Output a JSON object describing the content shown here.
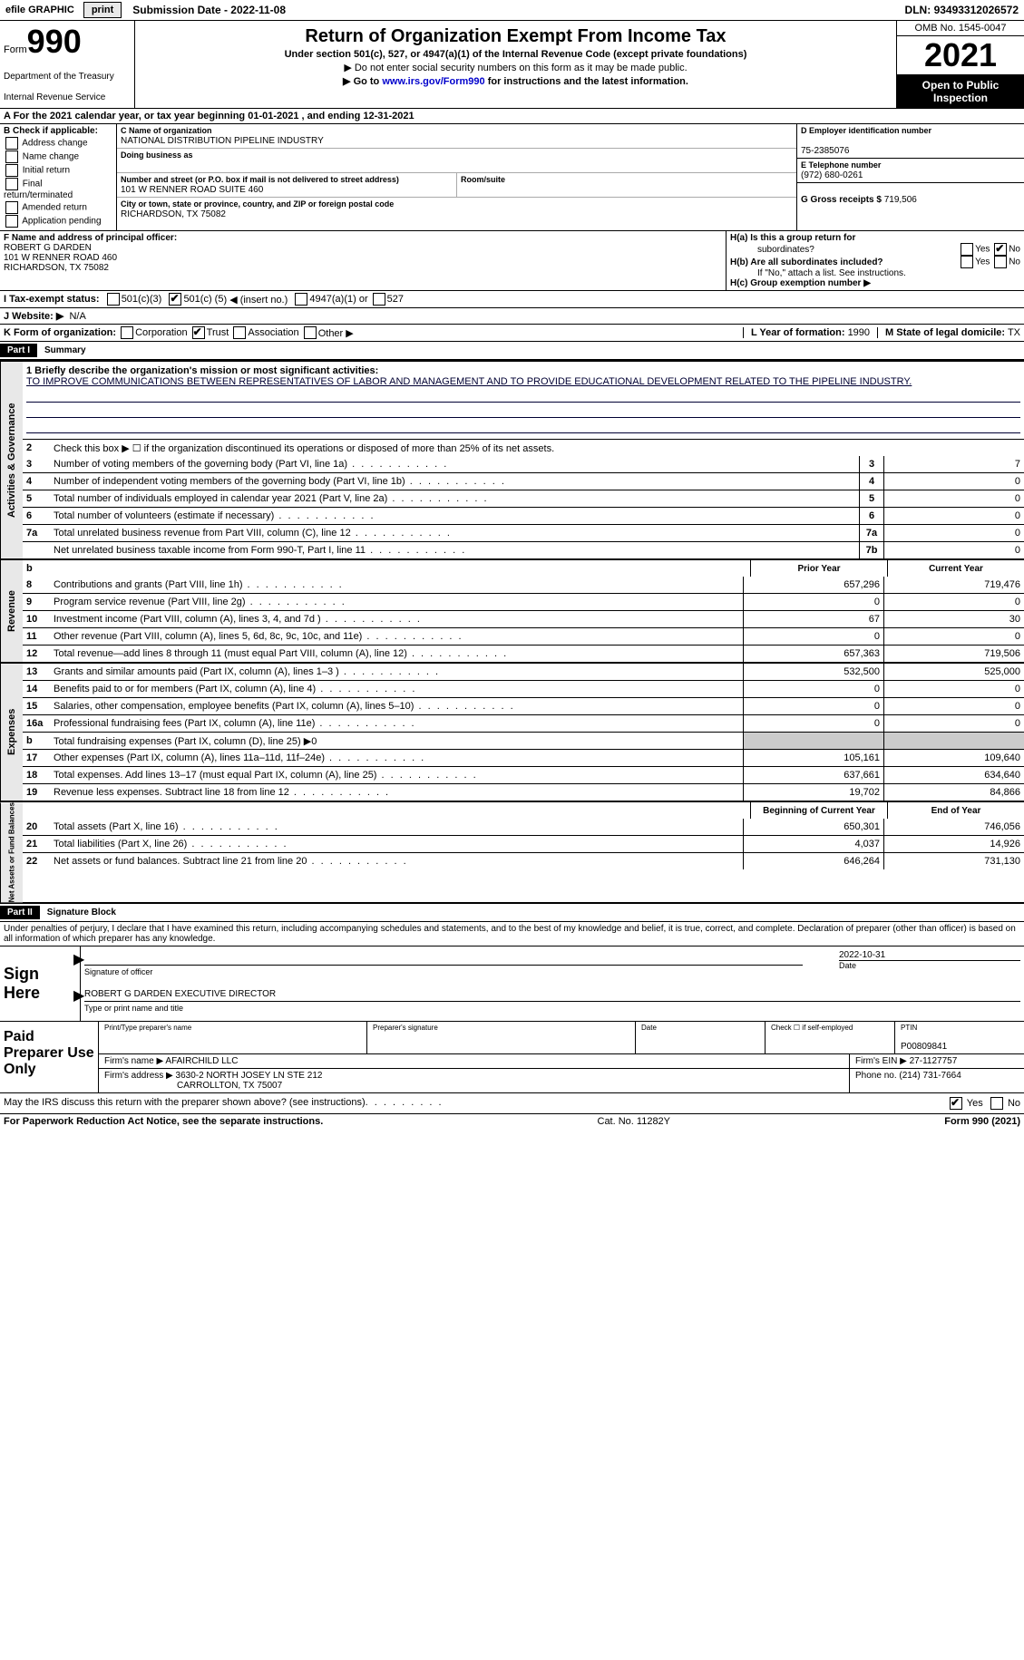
{
  "topbar": {
    "efile_prefix": "efile",
    "graphic": "GRAPHIC",
    "print": "print",
    "sub_date_label": "Submission Date -",
    "sub_date": "2022-11-08",
    "dln_label": "DLN:",
    "dln": "93493312026572"
  },
  "header": {
    "form_label": "Form",
    "form_num": "990",
    "dept": "Department of the Treasury",
    "irs": "Internal Revenue Service",
    "title": "Return of Organization Exempt From Income Tax",
    "sub1": "Under section 501(c), 527, or 4947(a)(1) of the Internal Revenue Code (except private foundations)",
    "sub2": "▶ Do not enter social security numbers on this form as it may be made public.",
    "sub3_pre": "▶ Go to ",
    "sub3_link": "www.irs.gov/Form990",
    "sub3_post": " for instructions and the latest information.",
    "omb": "OMB No. 1545-0047",
    "year": "2021",
    "open1": "Open to Public",
    "open2": "Inspection"
  },
  "row_a": {
    "text_pre": "A For the 2021 calendar year, or tax year beginning ",
    "begin": "01-01-2021",
    "mid": " , and ending ",
    "end": "12-31-2021"
  },
  "col_b": {
    "label": "B Check if applicable:",
    "opts": [
      "Address change",
      "Name change",
      "Initial return",
      "Final return/terminated",
      "Amended return",
      "Application pending"
    ]
  },
  "col_c": {
    "name_lbl": "C Name of organization",
    "name": "NATIONAL DISTRIBUTION PIPELINE INDUSTRY",
    "dba_lbl": "Doing business as",
    "dba": "",
    "addr_lbl": "Number and street (or P.O. box if mail is not delivered to street address)",
    "addr": "101 W RENNER ROAD SUITE 460",
    "suite_lbl": "Room/suite",
    "city_lbl": "City or town, state or province, country, and ZIP or foreign postal code",
    "city": "RICHARDSON, TX  75082"
  },
  "col_d": {
    "ein_lbl": "D Employer identification number",
    "ein": "75-2385076",
    "tel_lbl": "E Telephone number",
    "tel": "(972) 680-0261",
    "gross_lbl": "G Gross receipts $",
    "gross": "719,506"
  },
  "section_f": {
    "lbl": "F Name and address of principal officer:",
    "name": "ROBERT G DARDEN",
    "addr1": "101 W RENNER ROAD 460",
    "addr2": "RICHARDSON, TX  75082"
  },
  "section_h": {
    "ha_lbl": "H(a)  Is this a group return for",
    "ha_lbl2": "subordinates?",
    "hb_lbl": "H(b)  Are all subordinates included?",
    "hb_note": "If \"No,\" attach a list. See instructions.",
    "hc_lbl": "H(c)  Group exemption number ▶",
    "yes": "Yes",
    "no": "No"
  },
  "tax_status": {
    "lbl": "I   Tax-exempt status:",
    "o1": "501(c)(3)",
    "o2_pre": "501(c) (",
    "o2_val": "5",
    "o2_post": ") ◀ (insert no.)",
    "o3": "4947(a)(1) or",
    "o4": "527"
  },
  "website": {
    "lbl": "J   Website: ▶",
    "val": "N/A"
  },
  "kl": {
    "k_lbl": "K Form of organization:",
    "opts": [
      "Corporation",
      "Trust",
      "Association",
      "Other ▶"
    ],
    "l_lbl": "L Year of formation:",
    "l_val": "1990",
    "m_lbl": "M State of legal domicile:",
    "m_val": "TX"
  },
  "part1": {
    "hdr": "Part I",
    "title": "Summary",
    "vtab1": "Activities & Governance",
    "vtab2": "Revenue",
    "vtab3": "Expenses",
    "vtab4": "Net Assets or Fund Balances",
    "line1_lbl": "1  Briefly describe the organization's mission or most significant activities:",
    "mission": "TO IMPROVE COMMUNICATIONS BETWEEN REPRESENTATIVES OF LABOR AND MANAGEMENT AND TO PROVIDE EDUCATIONAL DEVELOPMENT RELATED TO THE PIPELINE INDUSTRY.",
    "line2": "Check this box ▶ ☐ if the organization discontinued its operations or disposed of more than 25% of its net assets.",
    "prior_hdr": "Prior Year",
    "current_hdr": "Current Year",
    "begin_hdr": "Beginning of Current Year",
    "end_hdr": "End of Year",
    "lines_single": [
      {
        "n": "3",
        "d": "Number of voting members of the governing body (Part VI, line 1a)",
        "b": "3",
        "v": "7"
      },
      {
        "n": "4",
        "d": "Number of independent voting members of the governing body (Part VI, line 1b)",
        "b": "4",
        "v": "0"
      },
      {
        "n": "5",
        "d": "Total number of individuals employed in calendar year 2021 (Part V, line 2a)",
        "b": "5",
        "v": "0"
      },
      {
        "n": "6",
        "d": "Total number of volunteers (estimate if necessary)",
        "b": "6",
        "v": "0"
      },
      {
        "n": "7a",
        "d": "Total unrelated business revenue from Part VIII, column (C), line 12",
        "b": "7a",
        "v": "0"
      },
      {
        "n": "",
        "d": "Net unrelated business taxable income from Form 990-T, Part I, line 11",
        "b": "7b",
        "v": "0"
      }
    ],
    "lines_rev": [
      {
        "n": "8",
        "d": "Contributions and grants (Part VIII, line 1h)",
        "p": "657,296",
        "c": "719,476"
      },
      {
        "n": "9",
        "d": "Program service revenue (Part VIII, line 2g)",
        "p": "0",
        "c": "0"
      },
      {
        "n": "10",
        "d": "Investment income (Part VIII, column (A), lines 3, 4, and 7d )",
        "p": "67",
        "c": "30"
      },
      {
        "n": "11",
        "d": "Other revenue (Part VIII, column (A), lines 5, 6d, 8c, 9c, 10c, and 11e)",
        "p": "0",
        "c": "0"
      },
      {
        "n": "12",
        "d": "Total revenue—add lines 8 through 11 (must equal Part VIII, column (A), line 12)",
        "p": "657,363",
        "c": "719,506"
      }
    ],
    "lines_exp": [
      {
        "n": "13",
        "d": "Grants and similar amounts paid (Part IX, column (A), lines 1–3 )",
        "p": "532,500",
        "c": "525,000"
      },
      {
        "n": "14",
        "d": "Benefits paid to or for members (Part IX, column (A), line 4)",
        "p": "0",
        "c": "0"
      },
      {
        "n": "15",
        "d": "Salaries, other compensation, employee benefits (Part IX, column (A), lines 5–10)",
        "p": "0",
        "c": "0"
      },
      {
        "n": "16a",
        "d": "Professional fundraising fees (Part IX, column (A), line 11e)",
        "p": "0",
        "c": "0"
      },
      {
        "n": "b",
        "d": "Total fundraising expenses (Part IX, column (D), line 25) ▶0",
        "p": "",
        "c": "",
        "grey": true
      },
      {
        "n": "17",
        "d": "Other expenses (Part IX, column (A), lines 11a–11d, 11f–24e)",
        "p": "105,161",
        "c": "109,640"
      },
      {
        "n": "18",
        "d": "Total expenses. Add lines 13–17 (must equal Part IX, column (A), line 25)",
        "p": "637,661",
        "c": "634,640"
      },
      {
        "n": "19",
        "d": "Revenue less expenses. Subtract line 18 from line 12",
        "p": "19,702",
        "c": "84,866"
      }
    ],
    "lines_net": [
      {
        "n": "20",
        "d": "Total assets (Part X, line 16)",
        "p": "650,301",
        "c": "746,056"
      },
      {
        "n": "21",
        "d": "Total liabilities (Part X, line 26)",
        "p": "4,037",
        "c": "14,926"
      },
      {
        "n": "22",
        "d": "Net assets or fund balances. Subtract line 21 from line 20",
        "p": "646,264",
        "c": "731,130"
      }
    ]
  },
  "part2": {
    "hdr": "Part II",
    "title": "Signature Block",
    "penalties": "Under penalties of perjury, I declare that I have examined this return, including accompanying schedules and statements, and to the best of my knowledge and belief, it is true, correct, and complete. Declaration of preparer (other than officer) is based on all information of which preparer has any knowledge.",
    "sign_here": "Sign Here",
    "sig_officer": "Signature of officer",
    "sig_date": "2022-10-31",
    "date_lbl": "Date",
    "officer_name": "ROBERT G DARDEN  EXECUTIVE DIRECTOR",
    "type_name": "Type or print name and title",
    "paid_lbl": "Paid Preparer Use Only",
    "prep_name_lbl": "Print/Type preparer's name",
    "prep_sig_lbl": "Preparer's signature",
    "check_self": "Check ☐ if self-employed",
    "ptin_lbl": "PTIN",
    "ptin": "P00809841",
    "firm_name_lbl": "Firm's name    ▶",
    "firm_name": "AFAIRCHILD LLC",
    "firm_ein_lbl": "Firm's EIN ▶",
    "firm_ein": "27-1127757",
    "firm_addr_lbl": "Firm's address ▶",
    "firm_addr1": "3630-2 NORTH JOSEY LN STE 212",
    "firm_addr2": "CARROLLTON, TX  75007",
    "phone_lbl": "Phone no.",
    "phone": "(214) 731-7664",
    "discuss": "May the IRS discuss this return with the preparer shown above? (see instructions)",
    "yes": "Yes",
    "no": "No"
  },
  "footer": {
    "pra": "For Paperwork Reduction Act Notice, see the separate instructions.",
    "cat": "Cat. No. 11282Y",
    "form": "Form 990 (2021)"
  }
}
